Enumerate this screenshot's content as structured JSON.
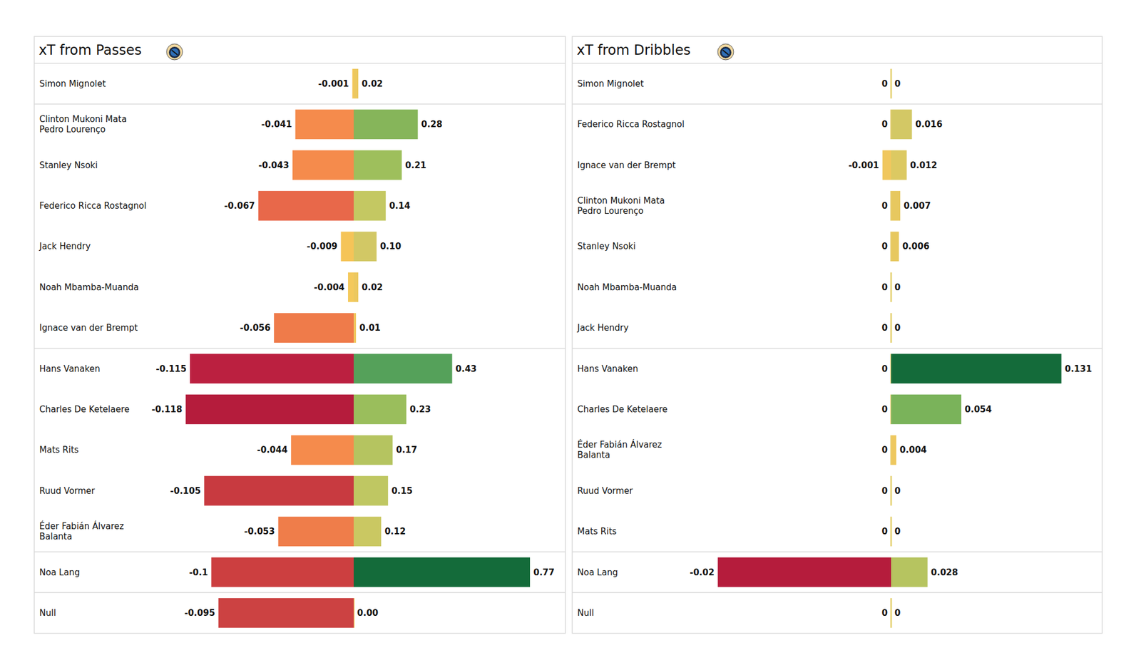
{
  "chart_data": [
    {
      "type": "bar",
      "orientation": "horizontal",
      "title": "xT from Passes",
      "categories": [
        "Simon Mignolet",
        "Clinton Mukoni Mata\nPedro Lourenço",
        "Stanley Nsoki",
        "Federico Ricca Rostagnol",
        "Jack Hendry",
        "Noah Mbamba-Muanda",
        "Ignace van der Brempt",
        "Hans Vanaken",
        "Charles De Ketelaere",
        "Mats Rits",
        "Ruud Vormer",
        "Éder Fabián Álvarez\nBalanta",
        "Noa Lang",
        "Null"
      ],
      "series": [
        {
          "values": [
            -0.001,
            -0.041,
            -0.043,
            -0.067,
            -0.009,
            -0.004,
            -0.056,
            -0.115,
            -0.118,
            -0.044,
            -0.105,
            -0.053,
            -0.1,
            -0.095
          ],
          "value_labels": [
            "-0.001",
            "-0.041",
            "-0.043",
            "-0.067",
            "-0.009",
            "-0.004",
            "-0.056",
            "-0.115",
            "-0.118",
            "-0.044",
            "-0.105",
            "-0.053",
            "-0.1",
            "-0.095"
          ],
          "colors": [
            "#f4c95c",
            "#f58b4c",
            "#f58b4c",
            "#e8684a",
            "#f5c458",
            "#f4c95c",
            "#ef7b4a",
            "#bb2040",
            "#b51c3c",
            "#f58b4c",
            "#c83a40",
            "#ef7d4a",
            "#cc3f40",
            "#cc4242"
          ]
        },
        {
          "values": [
            0.02,
            0.28,
            0.21,
            0.14,
            0.1,
            0.02,
            0.01,
            0.43,
            0.23,
            0.17,
            0.15,
            0.12,
            0.77,
            0.0
          ],
          "value_labels": [
            "0.02",
            "0.28",
            "0.21",
            "0.14",
            "0.10",
            "0.02",
            "0.01",
            "0.43",
            "0.23",
            "0.17",
            "0.15",
            "0.12",
            "0.77",
            "0.00"
          ],
          "colors": [
            "#ecc85f",
            "#86b55a",
            "#9ebf5c",
            "#c4c862",
            "#d2c865",
            "#ecc85f",
            "#f0c860",
            "#55a15a",
            "#9abe5c",
            "#b5c460",
            "#bfc762",
            "#cac862",
            "#146b3a",
            "#f0c860"
          ]
        }
      ],
      "xlim": [
        -0.125,
        0.8
      ],
      "data_labels": true,
      "tick_labels": "y",
      "grid": false
    },
    {
      "type": "bar",
      "orientation": "horizontal",
      "title": "xT from Dribbles",
      "categories": [
        "Simon Mignolet",
        "Federico Ricca Rostagnol",
        "Ignace van der Brempt",
        "Clinton Mukoni Mata\nPedro Lourenço",
        "Stanley Nsoki",
        "Noah Mbamba-Muanda",
        "Jack Hendry",
        "Hans Vanaken",
        "Charles De Ketelaere",
        "Éder Fabián Álvarez\nBalanta",
        "Ruud Vormer",
        "Mats Rits",
        "Noa Lang",
        "Null"
      ],
      "series": [
        {
          "values": [
            0,
            0,
            -0.001,
            0,
            0,
            0,
            0,
            0,
            0,
            0,
            0,
            0,
            -0.02,
            0
          ],
          "value_labels": [
            "0",
            "0",
            "-0.001",
            "0",
            "0",
            "0",
            "0",
            "0",
            "0",
            "0",
            "0",
            "0",
            "-0.02",
            "0"
          ],
          "colors": [
            "#e9d27a",
            "#e9d27a",
            "#f0c75e",
            "#e9d27a",
            "#e9d27a",
            "#e9d27a",
            "#e9d27a",
            "#e9d27a",
            "#e9d27a",
            "#e9d27a",
            "#e9d27a",
            "#e9d27a",
            "#b51c3c",
            "#e9d27a"
          ]
        },
        {
          "values": [
            0,
            0.016,
            0.012,
            0.007,
            0.006,
            0,
            0,
            0.131,
            0.054,
            0.004,
            0,
            0,
            0.028,
            0
          ],
          "value_labels": [
            "0",
            "0.016",
            "0.012",
            "0.007",
            "0.006",
            "0",
            "0",
            "0.131",
            "0.054",
            "0.004",
            "0",
            "0",
            "0.028",
            "0"
          ],
          "colors": [
            "#e3d57a",
            "#d3c865",
            "#dcc962",
            "#e7c85f",
            "#e7c85f",
            "#e3d57a",
            "#e3d57a",
            "#146b3a",
            "#7ab35a",
            "#eec85f",
            "#e3d57a",
            "#e3d57a",
            "#b6c460",
            "#e3d57a"
          ]
        }
      ],
      "xlim": [
        -0.021,
        0.14
      ],
      "data_labels": true,
      "tick_labels": "y",
      "grid": false
    }
  ]
}
